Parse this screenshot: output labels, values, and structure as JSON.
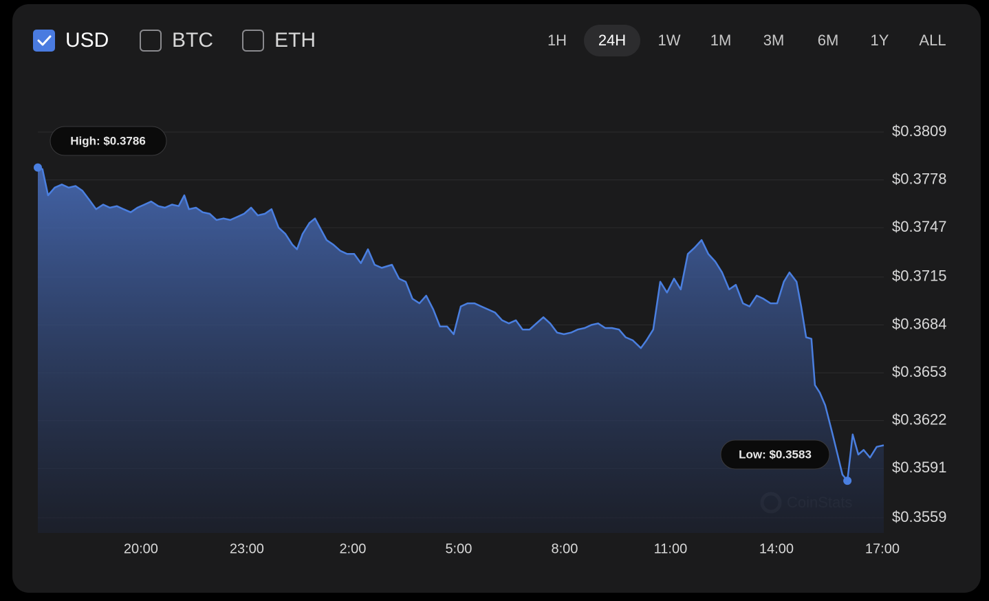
{
  "currencies": [
    {
      "label": "USD",
      "checked": true
    },
    {
      "label": "BTC",
      "checked": false
    },
    {
      "label": "ETH",
      "checked": false
    }
  ],
  "ranges": [
    {
      "label": "1H",
      "selected": false
    },
    {
      "label": "24H",
      "selected": true
    },
    {
      "label": "1W",
      "selected": false
    },
    {
      "label": "1M",
      "selected": false
    },
    {
      "label": "3M",
      "selected": false
    },
    {
      "label": "6M",
      "selected": false
    },
    {
      "label": "1Y",
      "selected": false
    },
    {
      "label": "ALL",
      "selected": false
    }
  ],
  "watermark": "CoinStats",
  "chart_data": {
    "type": "area",
    "color": "#4a7fe0",
    "grid": true,
    "high_label": "High: $0.3786",
    "low_label": "Low: $0.3583",
    "x": [
      17.08,
      17.21,
      17.37,
      17.56,
      17.76,
      17.95,
      18.15,
      18.34,
      18.54,
      18.73,
      18.93,
      19.12,
      19.32,
      19.51,
      19.71,
      19.9,
      20.1,
      20.29,
      20.49,
      20.68,
      20.88,
      21.07,
      21.23,
      21.36,
      21.56,
      21.75,
      21.95,
      22.14,
      22.34,
      22.53,
      22.73,
      22.92,
      23.12,
      23.31,
      23.51,
      23.7,
      23.9,
      24.09,
      24.29,
      24.42,
      24.58,
      24.77,
      24.93,
      25.07,
      25.26,
      25.45,
      25.65,
      25.84,
      26.04,
      26.23,
      26.43,
      26.62,
      26.82,
      27.11,
      27.31,
      27.5,
      27.69,
      27.89,
      28.08,
      28.28,
      28.47,
      28.67,
      28.86,
      29.06,
      29.25,
      29.45,
      29.64,
      29.84,
      30.03,
      30.23,
      30.42,
      30.62,
      30.81,
      31.01,
      31.2,
      31.4,
      31.59,
      31.79,
      31.98,
      32.18,
      32.37,
      32.57,
      32.76,
      32.95,
      33.15,
      33.34,
      33.54,
      33.73,
      33.93,
      34.16,
      34.32,
      34.51,
      34.71,
      34.9,
      35.1,
      35.29,
      35.49,
      35.68,
      35.88,
      36.07,
      36.27,
      36.46,
      36.66,
      36.85,
      37.05,
      37.24,
      37.44,
      37.63,
      37.83,
      38.02,
      38.21,
      38.37,
      38.57,
      38.7,
      38.84,
      38.99,
      39.09,
      39.23,
      39.38,
      39.58,
      39.73,
      39.87,
      40.01,
      40.16,
      40.32,
      40.47,
      40.65,
      40.84,
      41.04
    ],
    "values": [
      0.3786,
      0.3785,
      0.3768,
      0.3773,
      0.3775,
      0.3773,
      0.3774,
      0.3771,
      0.3765,
      0.3759,
      0.3762,
      0.376,
      0.3761,
      0.3759,
      0.3757,
      0.376,
      0.3762,
      0.3764,
      0.3761,
      0.376,
      0.3762,
      0.3761,
      0.3768,
      0.3759,
      0.376,
      0.3757,
      0.3756,
      0.3752,
      0.3753,
      0.3752,
      0.3754,
      0.3756,
      0.376,
      0.3755,
      0.3756,
      0.3759,
      0.3747,
      0.3743,
      0.3736,
      0.3733,
      0.3743,
      0.375,
      0.3753,
      0.3747,
      0.3739,
      0.3736,
      0.3732,
      0.373,
      0.373,
      0.3724,
      0.3733,
      0.3723,
      0.3721,
      0.3723,
      0.3714,
      0.3712,
      0.3701,
      0.3698,
      0.3703,
      0.3694,
      0.3683,
      0.3683,
      0.3678,
      0.3696,
      0.3698,
      0.3698,
      0.3696,
      0.3694,
      0.3692,
      0.3687,
      0.3685,
      0.3687,
      0.3681,
      0.3681,
      0.3685,
      0.3689,
      0.3685,
      0.3679,
      0.3678,
      0.3679,
      0.3681,
      0.3682,
      0.3684,
      0.3685,
      0.3682,
      0.3682,
      0.3681,
      0.3676,
      0.3674,
      0.3669,
      0.3674,
      0.3681,
      0.3712,
      0.3705,
      0.3714,
      0.3707,
      0.373,
      0.3734,
      0.3739,
      0.373,
      0.3725,
      0.3718,
      0.3707,
      0.371,
      0.3698,
      0.3696,
      0.3703,
      0.3701,
      0.3698,
      0.3698,
      0.3712,
      0.3718,
      0.3712,
      0.3696,
      0.3676,
      0.3675,
      0.3645,
      0.364,
      0.3632,
      0.3614,
      0.36,
      0.3587,
      0.3583,
      0.3613,
      0.36,
      0.3603,
      0.3598,
      0.3605,
      0.3606
    ],
    "xlim": [
      17.08,
      41.04
    ],
    "xticks": [
      {
        "value": 20,
        "label": "20:00"
      },
      {
        "value": 23,
        "label": "23:00"
      },
      {
        "value": 26,
        "label": "2:00"
      },
      {
        "value": 29,
        "label": "5:00"
      },
      {
        "value": 32,
        "label": "8:00"
      },
      {
        "value": 35,
        "label": "11:00"
      },
      {
        "value": 38,
        "label": "14:00"
      },
      {
        "value": 41,
        "label": "17:00"
      }
    ],
    "ylim": [
      0.3559,
      0.3809
    ],
    "yticks": [
      {
        "value": 0.3809,
        "label": "$0.3809"
      },
      {
        "value": 0.3778,
        "label": "$0.3778"
      },
      {
        "value": 0.3747,
        "label": "$0.3747"
      },
      {
        "value": 0.3715,
        "label": "$0.3715"
      },
      {
        "value": 0.3684,
        "label": "$0.3684"
      },
      {
        "value": 0.3653,
        "label": "$0.3653"
      },
      {
        "value": 0.3622,
        "label": "$0.3622"
      },
      {
        "value": 0.3591,
        "label": "$0.3591"
      },
      {
        "value": 0.3559,
        "label": "$0.3559"
      }
    ]
  }
}
